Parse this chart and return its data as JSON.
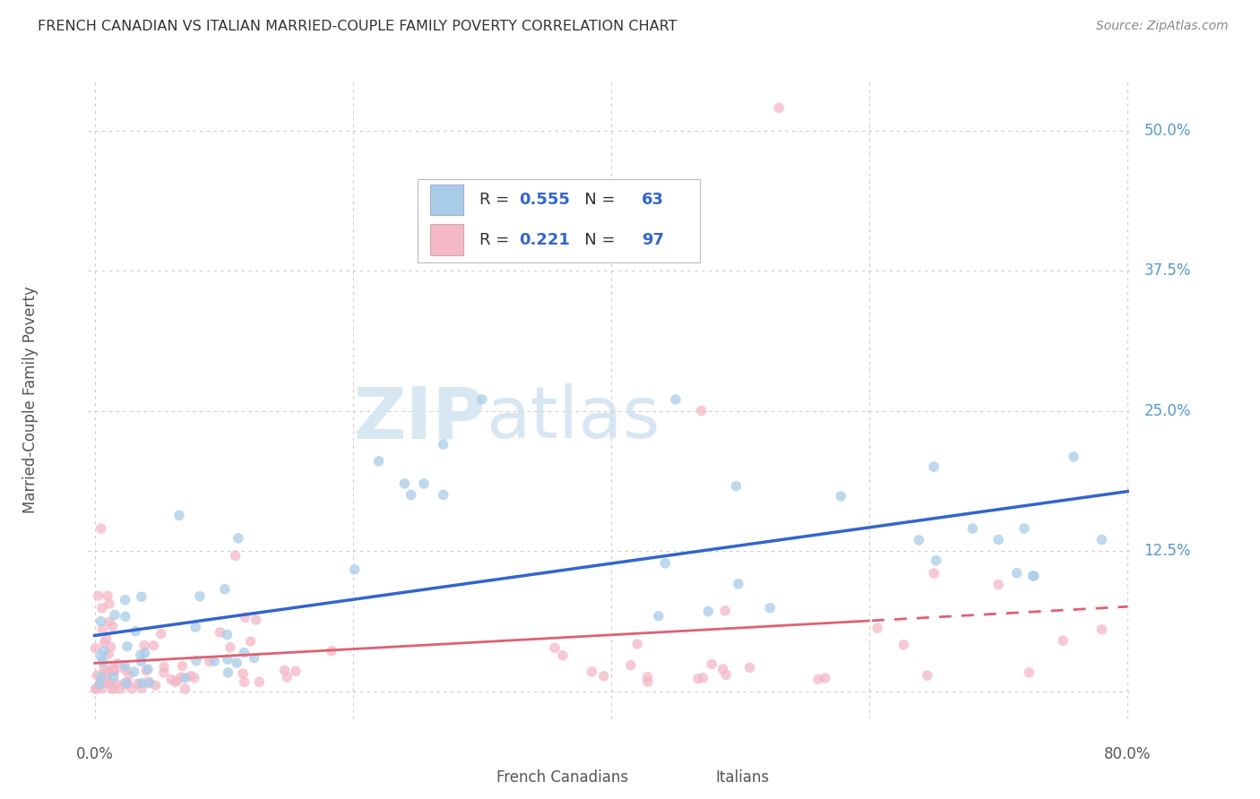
{
  "title": "FRENCH CANADIAN VS ITALIAN MARRIED-COUPLE FAMILY POVERTY CORRELATION CHART",
  "source": "Source: ZipAtlas.com",
  "ylabel": "Married-Couple Family Poverty",
  "french_R": 0.555,
  "french_N": 63,
  "italian_R": 0.221,
  "italian_N": 97,
  "french_color": "#A8CCE8",
  "french_edge_color": "#A8CCE8",
  "italian_color": "#F4B8C8",
  "italian_edge_color": "#F4B8C8",
  "french_line_color": "#3366CC",
  "italian_line_color": "#E06070",
  "legend_label1": "French Canadians",
  "legend_label2": "Italians",
  "label_color": "#4488BB",
  "text_color": "#333333",
  "source_color": "#888888",
  "grid_color": "#CCCCCC",
  "ytick_color": "#5599CC",
  "xtick_color": "#555555"
}
